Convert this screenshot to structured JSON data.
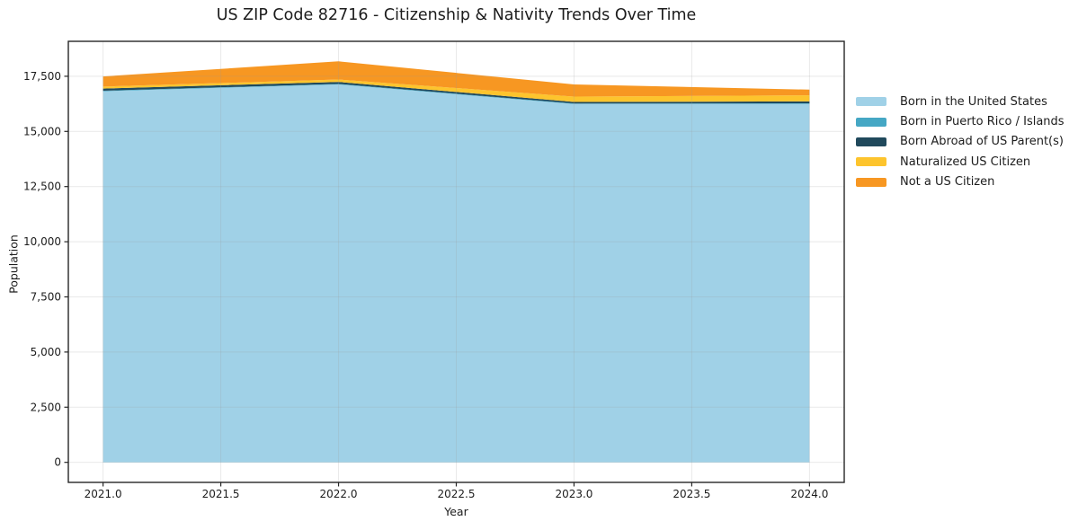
{
  "chart_data": {
    "type": "area",
    "stacked": true,
    "title": "US ZIP Code 82716 - Citizenship & Nativity Trends Over Time",
    "xlabel": "Year",
    "ylabel": "Population",
    "x": [
      2021,
      2022,
      2023,
      2024
    ],
    "series": [
      {
        "name": "Born in the United States",
        "color": "#a0d1e7",
        "values": [
          16820,
          17130,
          16240,
          16250
        ]
      },
      {
        "name": "Born in Puerto Rico / Islands",
        "color": "#45a7c4",
        "values": [
          25,
          25,
          25,
          25
        ]
      },
      {
        "name": "Born Abroad of US Parent(s)",
        "color": "#20495c",
        "values": [
          95,
          90,
          70,
          85
        ]
      },
      {
        "name": "Naturalized US Citizen",
        "color": "#fdc42d",
        "values": [
          90,
          110,
          245,
          275
        ]
      },
      {
        "name": "Not a US Citizen",
        "color": "#f79722",
        "values": [
          460,
          820,
          550,
          260
        ]
      }
    ],
    "xlim": [
      2020.8525,
      2024.1475
    ],
    "ylim": [
      -908.75,
      19083.75
    ],
    "x_ticks": [
      2021.0,
      2021.5,
      2022.0,
      2022.5,
      2023.0,
      2023.5,
      2024.0
    ],
    "x_tick_labels": [
      "2021.0",
      "2021.5",
      "2022.0",
      "2022.5",
      "2023.0",
      "2023.5",
      "2024.0"
    ],
    "y_ticks": [
      0,
      2500,
      5000,
      7500,
      10000,
      12500,
      15000,
      17500
    ],
    "y_tick_labels": [
      "0",
      "2,500",
      "5,000",
      "7,500",
      "10,000",
      "12,500",
      "15,000",
      "17,500"
    ],
    "grid": true,
    "legend_position": "right-outside",
    "colors": {
      "spine": "#262626",
      "grid": "#999999",
      "background": "#ffffff"
    }
  }
}
